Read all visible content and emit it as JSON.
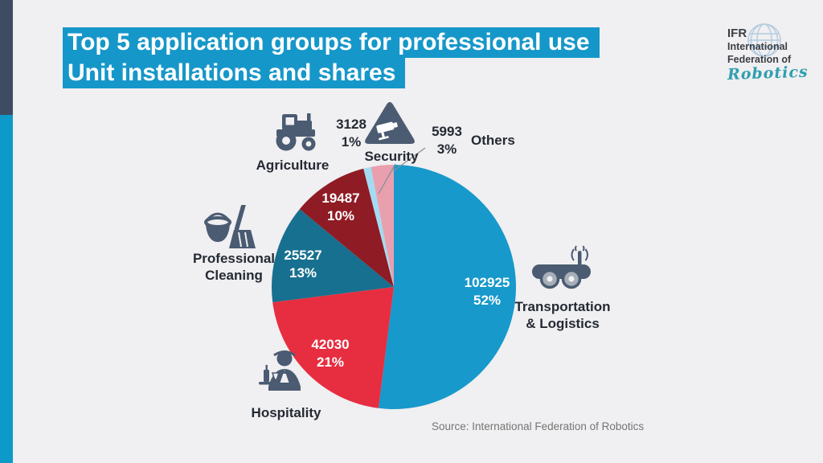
{
  "theme": {
    "background": "#f0eff1",
    "sidebar_top": "#3e4c62",
    "sidebar_bottom": "#0d9ac9",
    "title_highlight": "#1697c9",
    "title_text": "#ffffff",
    "icon_color": "#4a5b72",
    "label_dark": "#242a33",
    "pie_value_text": "#ffffff",
    "leader_line": "#8a9099"
  },
  "title": {
    "line1": "Top 5 application groups for professional use",
    "line2": "Unit installations and shares"
  },
  "logo": {
    "abbr": "IFR",
    "name_line1": "International",
    "name_line2": "Federation of",
    "script": "Robotics",
    "script_color": "#2f9fb0"
  },
  "source_note": "Source: International Federation of Robotics",
  "chart_data": {
    "type": "pie",
    "title": "Top 5 application groups for professional use",
    "subtitle": "Unit installations and shares",
    "direction": "clockwise",
    "start_angle_deg": 0,
    "legend": "none",
    "slices": [
      {
        "label": "Transportation & Logistics",
        "value": 102925,
        "pct": 52,
        "color": "#1799cb"
      },
      {
        "label": "Hospitality",
        "value": 42030,
        "pct": 21,
        "color": "#e62e40"
      },
      {
        "label": "Professional Cleaning",
        "value": 25527,
        "pct": 13,
        "color": "#17708f"
      },
      {
        "label": "Agriculture",
        "value": 19487,
        "pct": 10,
        "color": "#8f1b24"
      },
      {
        "label": "Security",
        "value": 3128,
        "pct": 1,
        "color": "#a3dcf2"
      },
      {
        "label": "Others",
        "value": 5993,
        "pct": 3,
        "color": "#ea9fae"
      }
    ]
  },
  "display": {
    "values": {
      "transport": "102925",
      "hospitality": "42030",
      "cleaning": "25527",
      "agriculture": "19487",
      "security": "3128",
      "others": "5993"
    },
    "pcts": {
      "transport": "52%",
      "hospitality": "21%",
      "cleaning": "13%",
      "agriculture": "10%",
      "security": "1%",
      "others": "3%"
    },
    "names": {
      "agriculture": "Agriculture",
      "security": "Security",
      "others": "Others",
      "cleaning_line1": "Professional",
      "cleaning_line2": "Cleaning",
      "hospitality": "Hospitality",
      "transport_line1": "Transportation",
      "transport_line2": "& Logistics"
    }
  }
}
